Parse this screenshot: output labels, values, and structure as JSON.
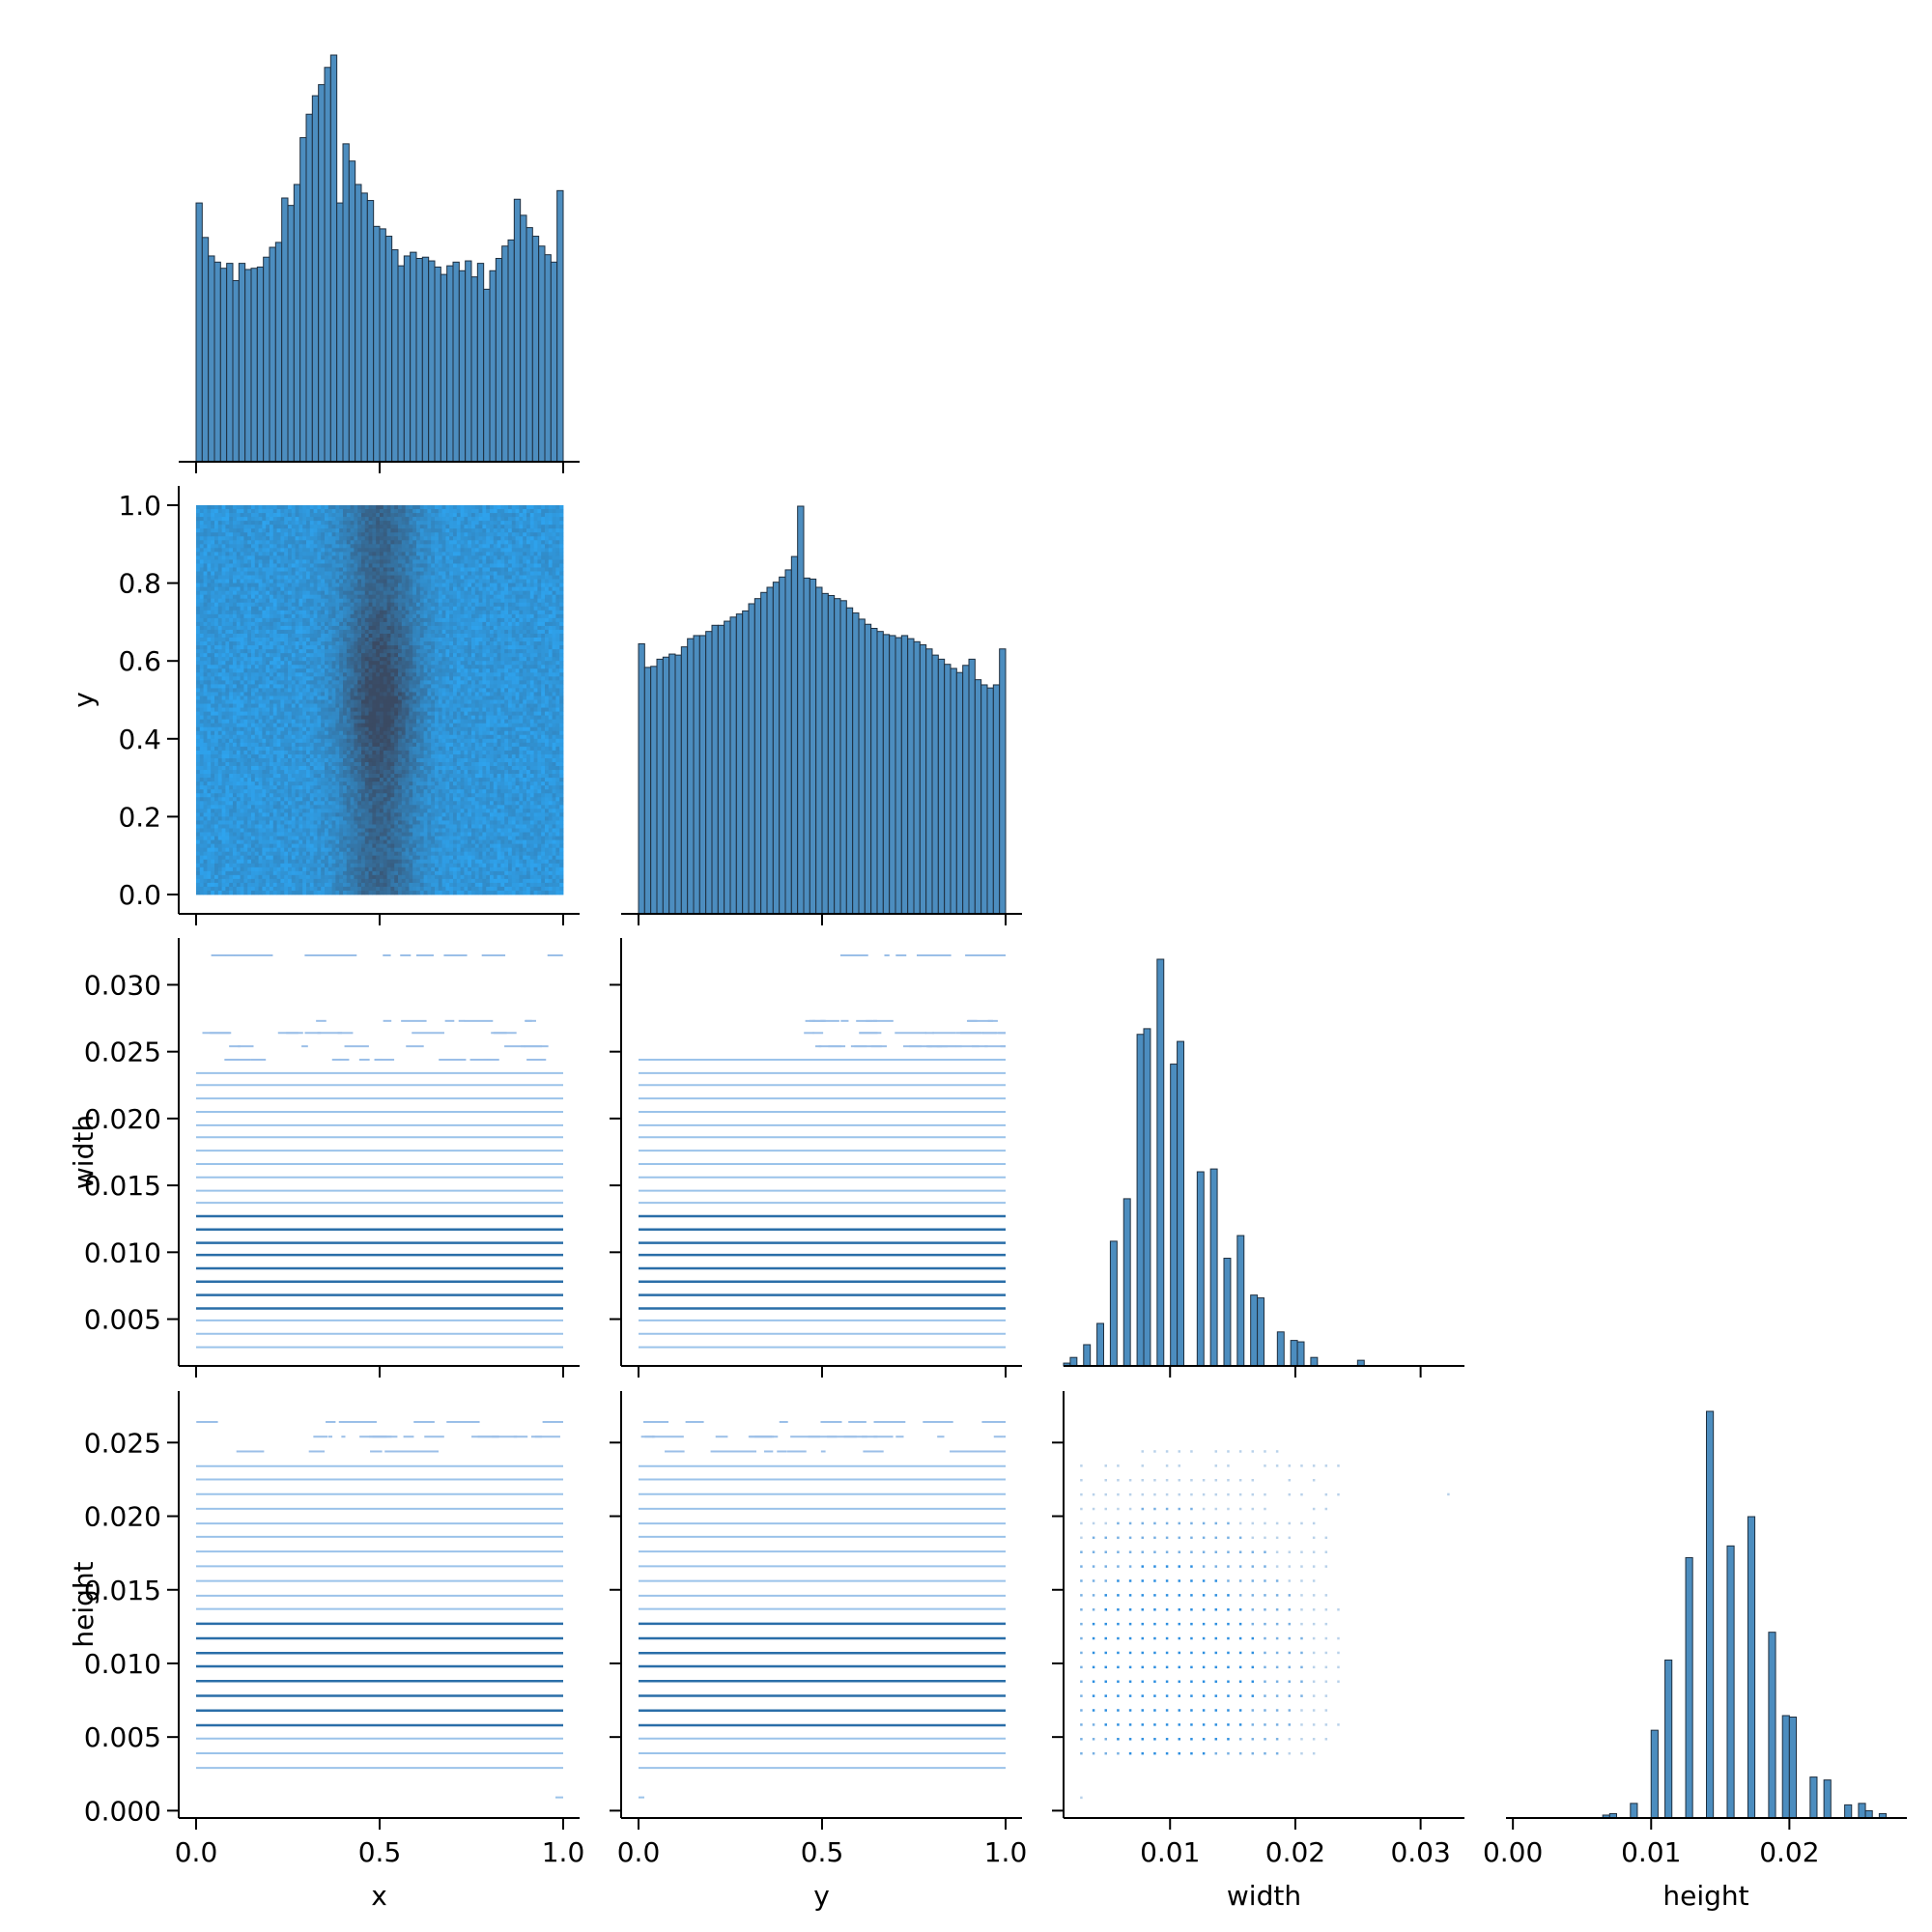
{
  "chart_data": [
    {
      "type": "bar",
      "panel": "x-histogram",
      "x_range": [
        0,
        1
      ],
      "bins": 60,
      "values": [
        210,
        182,
        167,
        162,
        157,
        161,
        147,
        161,
        156,
        157,
        158,
        166,
        174,
        178,
        214,
        208,
        225,
        263,
        282,
        297,
        306,
        320,
        330,
        210,
        258,
        244,
        225,
        218,
        212,
        191,
        189,
        183,
        172,
        159,
        167,
        170,
        165,
        166,
        163,
        158,
        152,
        159,
        162,
        155,
        163,
        150,
        161,
        140,
        155,
        165,
        175,
        180,
        213,
        200,
        190,
        183,
        175,
        168,
        162,
        220
      ]
    },
    {
      "type": "heatmap",
      "panel": "x-vs-y",
      "xlabel": "",
      "ylabel": "y",
      "xlim": [
        0,
        1
      ],
      "ylim": [
        0,
        1
      ],
      "yticks": [
        "0.0",
        "0.2",
        "0.4",
        "0.6",
        "0.8",
        "1.0"
      ],
      "density_peak": [
        0.5,
        0.5
      ],
      "colors": {
        "low": "#2ea4ef",
        "high": "#3a4a63"
      }
    },
    {
      "type": "bar",
      "panel": "y-histogram",
      "x_range": [
        0,
        1
      ],
      "bins": 60,
      "values": [
        263,
        240,
        241,
        248,
        250,
        253,
        252,
        260,
        268,
        271,
        271,
        275,
        281,
        281,
        285,
        289,
        292,
        295,
        302,
        307,
        313,
        318,
        323,
        328,
        335,
        348,
        397,
        327,
        326,
        318,
        312,
        310,
        307,
        305,
        298,
        293,
        287,
        282,
        278,
        275,
        272,
        271,
        269,
        271,
        268,
        265,
        262,
        258,
        252,
        248,
        243,
        239,
        235,
        242,
        248,
        228,
        223,
        220,
        223,
        258
      ]
    },
    {
      "type": "scatter",
      "panel": "x-vs-width",
      "ylabel": "width",
      "xlim": [
        0,
        1
      ],
      "ylim": [
        0.0015,
        0.0335
      ],
      "yticks": [
        "0.005",
        "0.010",
        "0.015",
        "0.020",
        "0.025",
        "0.030"
      ],
      "levels": [
        0.0029,
        0.0039,
        0.0049,
        0.0058,
        0.0068,
        0.0078,
        0.0088,
        0.0098,
        0.0107,
        0.0117,
        0.0127,
        0.0137,
        0.0146,
        0.0156,
        0.0166,
        0.0176,
        0.0186,
        0.0195,
        0.0205,
        0.0215,
        0.0225,
        0.0234,
        0.0244,
        0.0254,
        0.0264,
        0.0273,
        0.0322
      ]
    },
    {
      "type": "scatter",
      "panel": "y-vs-width",
      "xlim": [
        0,
        1
      ],
      "ylim": [
        0.0015,
        0.0335
      ]
    },
    {
      "type": "bar",
      "panel": "width-histogram",
      "x_range": [
        0.0015,
        0.0335
      ],
      "bins": 60,
      "values": [
        2,
        6,
        0,
        15,
        0,
        30,
        0,
        88,
        0,
        118,
        0,
        234,
        238,
        0,
        287,
        0,
        213,
        229,
        0,
        0,
        137,
        0,
        139,
        0,
        76,
        0,
        92,
        0,
        50,
        48,
        0,
        0,
        24,
        0,
        18,
        17,
        0,
        6,
        0,
        0,
        0,
        0,
        0,
        0,
        4,
        0,
        0,
        0,
        0,
        0,
        0,
        0,
        0,
        0,
        0,
        0,
        0,
        0,
        0,
        0
      ]
    },
    {
      "type": "scatter",
      "panel": "x-vs-height",
      "xlabel": "x",
      "ylabel": "height",
      "xlim": [
        -0.05,
        1.05
      ],
      "ylim": [
        -0.0005,
        0.0285
      ],
      "xticks": [
        "0.0",
        "0.5",
        "1.0"
      ],
      "yticks": [
        "0.000",
        "0.005",
        "0.010",
        "0.015",
        "0.020",
        "0.025"
      ],
      "levels": [
        0.0029,
        0.0039,
        0.0049,
        0.0058,
        0.0068,
        0.0078,
        0.0088,
        0.0098,
        0.0107,
        0.0117,
        0.0127,
        0.0137,
        0.0146,
        0.0156,
        0.0166,
        0.0176,
        0.0186,
        0.0195,
        0.0205,
        0.0215,
        0.0225,
        0.0234,
        0.0244,
        0.0254,
        0.0264
      ]
    },
    {
      "type": "scatter",
      "panel": "y-vs-height",
      "xlabel": "y",
      "xlim": [
        -0.05,
        1.05
      ],
      "ylim": [
        -0.0005,
        0.0285
      ],
      "xticks": [
        "0.0",
        "0.5",
        "1.0"
      ]
    },
    {
      "type": "scatter",
      "panel": "width-vs-height",
      "xlabel": "width",
      "xlim": [
        0.0015,
        0.0335
      ],
      "ylim": [
        -0.0005,
        0.0285
      ],
      "xticks": [
        "0.01",
        "0.02",
        "0.03"
      ]
    },
    {
      "type": "bar",
      "panel": "height-histogram",
      "xlabel": "height",
      "x_range": [
        -0.0005,
        0.0285
      ],
      "bins": 58,
      "values": [
        0,
        0,
        0,
        0,
        0,
        0,
        0,
        0,
        0,
        0,
        0,
        0,
        0,
        0,
        2,
        3,
        0,
        0,
        10,
        0,
        0,
        60,
        0,
        108,
        0,
        0,
        178,
        0,
        0,
        278,
        0,
        0,
        186,
        0,
        0,
        206,
        0,
        0,
        127,
        0,
        70,
        69,
        0,
        0,
        28,
        0,
        26,
        0,
        0,
        9,
        0,
        10,
        5,
        0,
        3,
        0,
        0,
        0
      ]
    }
  ]
}
